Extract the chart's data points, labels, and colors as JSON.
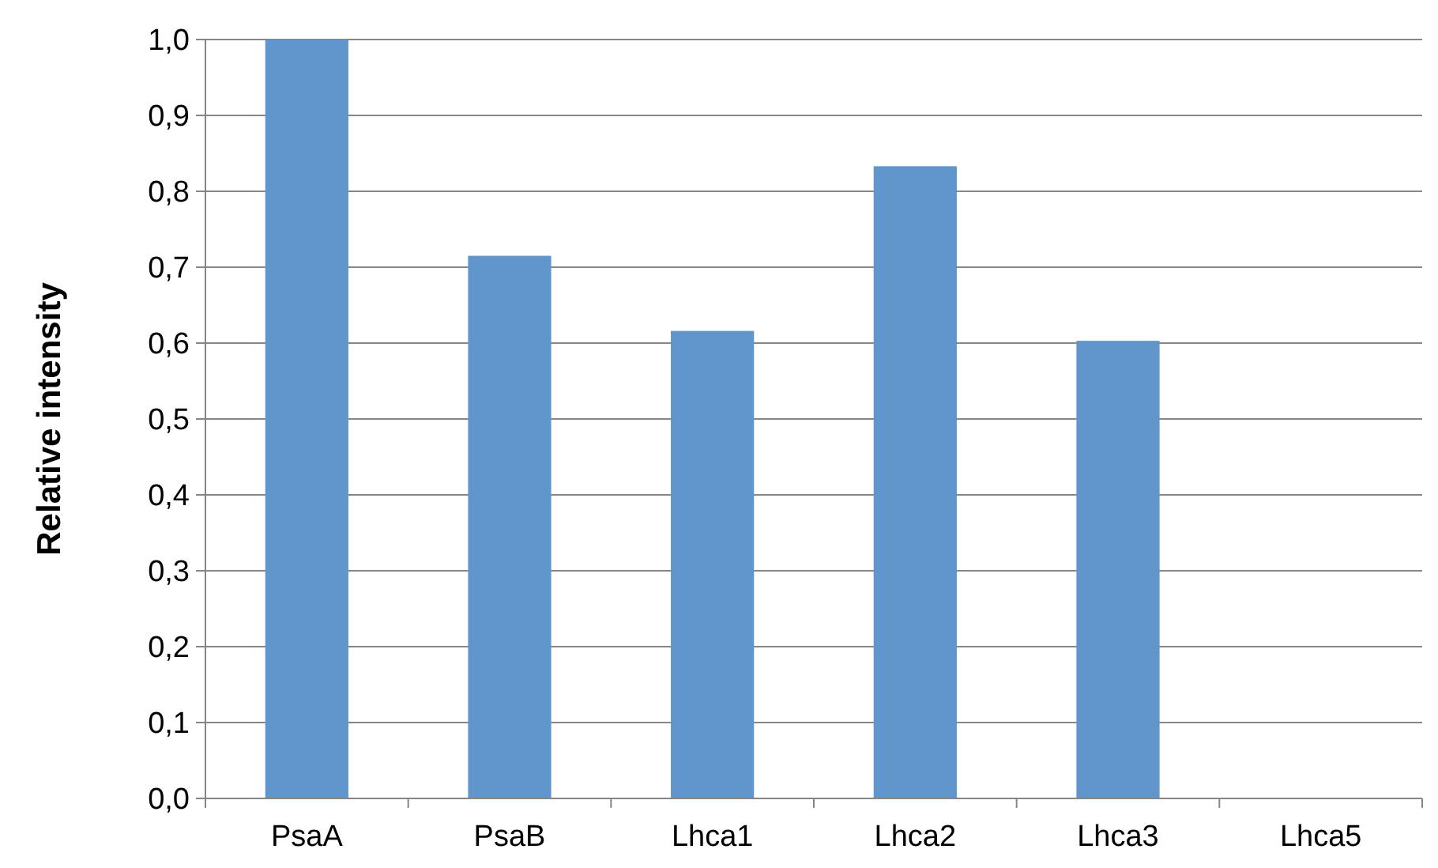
{
  "chart_data": {
    "type": "bar",
    "ylabel": "Relative intensity",
    "categories": [
      "PsaA",
      "PsaB",
      "Lhca1",
      "Lhca2",
      "Lhca3",
      "Lhca5"
    ],
    "values": [
      1.0,
      0.715,
      0.616,
      0.833,
      0.603,
      0
    ],
    "color": "#6096cb",
    "ylim": [
      0,
      1
    ],
    "yticks": [
      {
        "value": 0,
        "label": "0,0"
      },
      {
        "value": 0.1,
        "label": "0,1"
      },
      {
        "value": 0.2,
        "label": "0,2"
      },
      {
        "value": 0.3,
        "label": "0,3"
      },
      {
        "value": 0.4,
        "label": "0,4"
      },
      {
        "value": 0.5,
        "label": "0,5"
      },
      {
        "value": 0.6,
        "label": "0,6"
      },
      {
        "value": 0.7,
        "label": "0,7"
      },
      {
        "value": 0.8,
        "label": "0,8"
      },
      {
        "value": 0.9,
        "label": "0,9"
      },
      {
        "value": 1,
        "label": "1,0"
      }
    ],
    "grid": true
  }
}
